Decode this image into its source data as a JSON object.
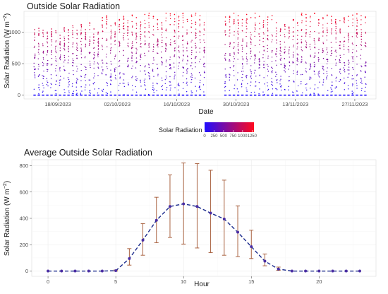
{
  "chart_data": [
    {
      "type": "scatter",
      "title": "Outside Solar Radiation",
      "xlabel": "Date",
      "ylabel": "Solar Radiation (W m",
      "ylabel_sup": "−2",
      "ylabel_end": ")",
      "date_range": [
        "2023-09-10",
        "2023-12-02"
      ],
      "ylim": [
        -60,
        1330
      ],
      "y_ticks": [
        0,
        500,
        1000
      ],
      "x_ticks": [
        {
          "date": "2023-09-18",
          "label": "18/09/2023"
        },
        {
          "date": "2023-10-02",
          "label": "02/10/2023"
        },
        {
          "date": "2023-10-16",
          "label": "16/10/2023"
        },
        {
          "date": "2023-10-30",
          "label": "30/10/2023"
        },
        {
          "date": "2023-11-13",
          "label": "13/11/2023"
        },
        {
          "date": "2023-11-27",
          "label": "27/11/2023"
        }
      ],
      "daily_peaks": [
        {
          "date": "2023-09-12",
          "peak": 1040
        },
        {
          "date": "2023-09-13",
          "peak": 1060
        },
        {
          "date": "2023-09-14",
          "peak": 1030
        },
        {
          "date": "2023-09-15",
          "peak": 1000
        },
        {
          "date": "2023-09-16",
          "peak": 1050
        },
        {
          "date": "2023-09-17",
          "peak": 1020
        },
        {
          "date": "2023-09-18",
          "peak": 950
        },
        {
          "date": "2023-09-19",
          "peak": 1070
        },
        {
          "date": "2023-09-20",
          "peak": 1040
        },
        {
          "date": "2023-09-21",
          "peak": 1100
        },
        {
          "date": "2023-09-22",
          "peak": 1030
        },
        {
          "date": "2023-09-23",
          "peak": 1120
        },
        {
          "date": "2023-09-24",
          "peak": 1040
        },
        {
          "date": "2023-09-25",
          "peak": 1150
        },
        {
          "date": "2023-09-26",
          "peak": 1050
        },
        {
          "date": "2023-09-27",
          "peak": 1000
        },
        {
          "date": "2023-09-28",
          "peak": 1230
        },
        {
          "date": "2023-09-29",
          "peak": 1260
        },
        {
          "date": "2023-09-30",
          "peak": 1100
        },
        {
          "date": "2023-10-01",
          "peak": 1150
        },
        {
          "date": "2023-10-02",
          "peak": 1200
        },
        {
          "date": "2023-10-03",
          "peak": 1250
        },
        {
          "date": "2023-10-04",
          "peak": 1180
        },
        {
          "date": "2023-10-05",
          "peak": 1270
        },
        {
          "date": "2023-10-06",
          "peak": 1230
        },
        {
          "date": "2023-10-07",
          "peak": 1160
        },
        {
          "date": "2023-10-08",
          "peak": 1280
        },
        {
          "date": "2023-10-09",
          "peak": 1300
        },
        {
          "date": "2023-10-10",
          "peak": 1250
        },
        {
          "date": "2023-10-11",
          "peak": 1200
        },
        {
          "date": "2023-10-12",
          "peak": 1150
        },
        {
          "date": "2023-10-13",
          "peak": 1300
        },
        {
          "date": "2023-10-14",
          "peak": 1290
        },
        {
          "date": "2023-10-15",
          "peak": 1280
        },
        {
          "date": "2023-10-16",
          "peak": 1250
        },
        {
          "date": "2023-10-17",
          "peak": 1300
        },
        {
          "date": "2023-10-18",
          "peak": 1200
        },
        {
          "date": "2023-10-19",
          "peak": 1270
        },
        {
          "date": "2023-10-20",
          "peak": 1300
        },
        {
          "date": "2023-10-21",
          "peak": 1260
        },
        {
          "date": "2023-10-22",
          "peak": 1150
        },
        {
          "date": "2023-10-27",
          "peak": 1240
        },
        {
          "date": "2023-10-28",
          "peak": 1250
        },
        {
          "date": "2023-10-29",
          "peak": 1300
        },
        {
          "date": "2023-10-30",
          "peak": 1260
        },
        {
          "date": "2023-10-31",
          "peak": 1200
        },
        {
          "date": "2023-11-01",
          "peak": 1280
        },
        {
          "date": "2023-11-02",
          "peak": 1230
        },
        {
          "date": "2023-11-03",
          "peak": 1300
        },
        {
          "date": "2023-11-04",
          "peak": 1250
        },
        {
          "date": "2023-11-05",
          "peak": 1180
        },
        {
          "date": "2023-11-06",
          "peak": 1240
        },
        {
          "date": "2023-11-07",
          "peak": 1260
        },
        {
          "date": "2023-11-08",
          "peak": 1150
        },
        {
          "date": "2023-11-09",
          "peak": 1050
        },
        {
          "date": "2023-11-10",
          "peak": 1120
        },
        {
          "date": "2023-11-11",
          "peak": 1080
        },
        {
          "date": "2023-11-12",
          "peak": 1200
        },
        {
          "date": "2023-11-13",
          "peak": 1150
        },
        {
          "date": "2023-11-14",
          "peak": 1300
        },
        {
          "date": "2023-11-15",
          "peak": 1280
        },
        {
          "date": "2023-11-16",
          "peak": 1250
        },
        {
          "date": "2023-11-17",
          "peak": 1300
        },
        {
          "date": "2023-11-18",
          "peak": 1200
        },
        {
          "date": "2023-11-19",
          "peak": 1230
        },
        {
          "date": "2023-11-20",
          "peak": 1270
        },
        {
          "date": "2023-11-21",
          "peak": 1250
        },
        {
          "date": "2023-11-22",
          "peak": 1200
        },
        {
          "date": "2023-11-23",
          "peak": 1180
        },
        {
          "date": "2023-11-24",
          "peak": 1230
        },
        {
          "date": "2023-11-25",
          "peak": 1250
        },
        {
          "date": "2023-11-26",
          "peak": 1270
        },
        {
          "date": "2023-11-27",
          "peak": 1290
        },
        {
          "date": "2023-11-28",
          "peak": 1260
        },
        {
          "date": "2023-11-29",
          "peak": 1240
        }
      ],
      "legend": {
        "title": "Solar Radiation",
        "placement": "bottom",
        "range": [
          0,
          1300
        ],
        "ticks": [
          0,
          250,
          500,
          750,
          1000,
          1250
        ],
        "tick_labels": [
          "0",
          "250",
          "500",
          "750",
          "1000",
          "1250"
        ],
        "colors": [
          "#1f0dff",
          "#ff0a1e"
        ]
      },
      "grid": true
    },
    {
      "type": "line",
      "title": "Average Outside Solar Radiation",
      "xlabel": "Hour",
      "ylabel": "Solar Radiation (W m",
      "ylabel_sup": "−2",
      "ylabel_end": ")",
      "xlim": [
        -1.2,
        24.2
      ],
      "ylim": [
        -40,
        845
      ],
      "x_ticks": [
        0,
        5,
        10,
        15,
        20
      ],
      "y_ticks": [
        0,
        200,
        400,
        600,
        800
      ],
      "x": [
        0,
        1,
        2,
        3,
        4,
        5,
        6,
        7,
        8,
        9,
        10,
        11,
        12,
        13,
        14,
        15,
        16,
        17,
        18,
        19,
        20,
        21,
        22,
        23
      ],
      "mean": [
        0,
        0,
        0,
        0,
        0,
        3,
        95,
        235,
        385,
        490,
        510,
        490,
        440,
        395,
        295,
        185,
        75,
        15,
        0,
        0,
        0,
        0,
        0,
        0
      ],
      "error_low": [
        0,
        0,
        0,
        0,
        0,
        0,
        45,
        120,
        215,
        255,
        205,
        175,
        140,
        120,
        110,
        95,
        40,
        5,
        0,
        0,
        0,
        0,
        0,
        0
      ],
      "error_high": [
        0,
        0,
        0,
        0,
        0,
        8,
        170,
        360,
        560,
        730,
        820,
        815,
        765,
        690,
        495,
        310,
        130,
        30,
        0,
        0,
        0,
        0,
        0,
        0
      ],
      "colors": {
        "line": "#1a2a8c",
        "point": "#4b2ea3",
        "error": "#a0522d"
      },
      "grid": true
    }
  ]
}
